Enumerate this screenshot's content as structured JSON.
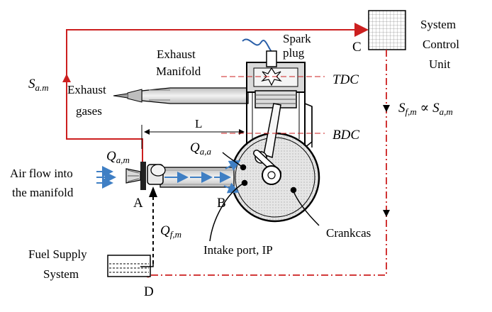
{
  "labels": {
    "spark_plug_line1": "Spark",
    "spark_plug_line2": "plug",
    "system_control_line1": "System",
    "system_control_line2": "Control",
    "system_control_line3": "Unit",
    "point_c": "C",
    "exhaust_manifold_line1": "Exhaust",
    "exhaust_manifold_line2": "Manifold",
    "tdc": "TDC",
    "bdc": "BDC",
    "exhaust_gases_line1": "Exhaust",
    "exhaust_gases_line2": "gases",
    "length_l": "L",
    "air_flow_line1": "Air flow into",
    "air_flow_line2": "the manifold",
    "point_a": "A",
    "point_b": "B",
    "point_d": "D",
    "fuel_supply_line1": "Fuel Supply",
    "fuel_supply_line2": "System",
    "intake_port": "Intake port, IP",
    "crankcase": "Crankcas"
  },
  "math": {
    "s_am_base": "S",
    "s_am_sub": "a.m",
    "q_am_base": "Q",
    "q_am_sub": "a,m",
    "q_aa_base": "Q",
    "q_aa_sub": "a,a",
    "q_fm_base": "Q",
    "q_fm_sub": "f,m",
    "sfm_relation_base1": "S",
    "sfm_relation_sub1": "f,m",
    "sfm_relation_op": " ∝ ",
    "sfm_relation_base2": "S",
    "sfm_relation_sub2": "a,m"
  },
  "colors": {
    "air_signal": "#cc1f1f",
    "fuel_signal": "#cc1f1f",
    "air_flow_arrows": "#3f7fc4",
    "spark_wire": "#2a5fa8",
    "component_outline": "#000000"
  }
}
